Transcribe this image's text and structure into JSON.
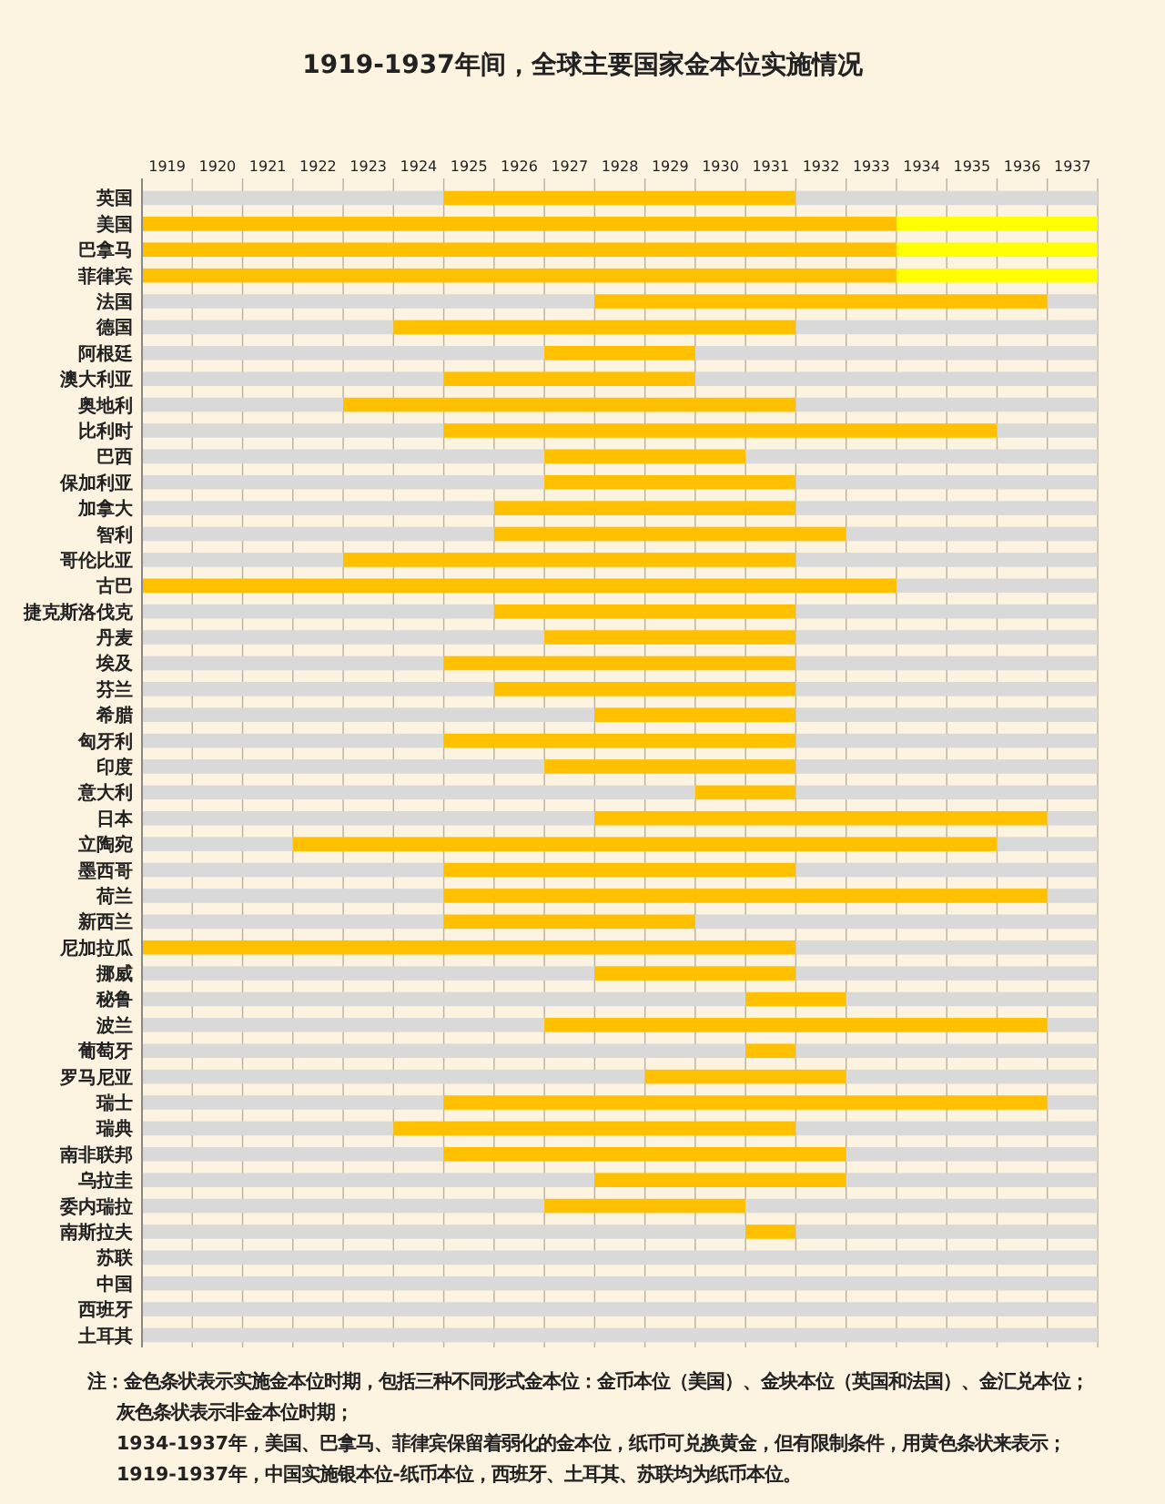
{
  "chart_data": {
    "type": "bar",
    "orientation": "horizontal",
    "title": "1919-1937年间，全球主要国家金本位实施情况",
    "categories": [
      "英国",
      "美国",
      "巴拿马",
      "菲律宾",
      "法国",
      "德国",
      "阿根廷",
      "澳大利亚",
      "奥地利",
      "比利时",
      "巴西",
      "保加利亚",
      "加拿大",
      "智利",
      "哥伦比亚",
      "古巴",
      "捷克斯洛伐克",
      "丹麦",
      "埃及",
      "芬兰",
      "希腊",
      "匈牙利",
      "印度",
      "意大利",
      "日本",
      "立陶宛",
      "墨西哥",
      "荷兰",
      "新西兰",
      "尼加拉瓜",
      "挪威",
      "秘鲁",
      "波兰",
      "葡萄牙",
      "罗马尼亚",
      "瑞士",
      "瑞典",
      "南非联邦",
      "乌拉圭",
      "委内瑞拉",
      "南斯拉夫",
      "苏联",
      "中国",
      "西班牙",
      "土耳其"
    ],
    "series": [
      {
        "color": "#d9d9d9",
        "base": [
          1919,
          null,
          null,
          null,
          1919,
          1919,
          1919,
          1919,
          1919,
          1919,
          1919,
          1919,
          1919,
          1919,
          1919,
          null,
          1919,
          1919,
          1919,
          1919,
          1919,
          1919,
          1919,
          1919,
          1919,
          1919,
          1919,
          1919,
          1919,
          null,
          1919,
          1919,
          1919,
          1919,
          1919,
          1919,
          1919,
          1919,
          1919,
          1919,
          1919,
          1919,
          1919,
          1919,
          1919
        ],
        "values": [
          6,
          null,
          null,
          null,
          9,
          5,
          8,
          6,
          4,
          6,
          8,
          8,
          7,
          7,
          4,
          null,
          7,
          8,
          6,
          7,
          9,
          6,
          8,
          11,
          9,
          3,
          6,
          6,
          6,
          null,
          9,
          12,
          8,
          12,
          10,
          6,
          5,
          6,
          9,
          8,
          12,
          19,
          19,
          19,
          19
        ]
      },
      {
        "color": "#ffc000",
        "base": [
          1925,
          1919,
          1919,
          1919,
          1928,
          1924,
          1927,
          1925,
          1923,
          1925,
          1927,
          1927,
          1926,
          1926,
          1923,
          1919,
          1926,
          1927,
          1925,
          1926,
          1928,
          1925,
          1927,
          1930,
          1928,
          1922,
          1925,
          1925,
          1925,
          1919,
          1928,
          1931,
          1927,
          1931,
          1929,
          1925,
          1924,
          1925,
          1928,
          1927,
          1931,
          null,
          null,
          null,
          null
        ],
        "values": [
          7,
          15,
          15,
          15,
          9,
          8,
          3,
          5,
          9,
          11,
          4,
          5,
          6,
          7,
          9,
          15,
          6,
          5,
          7,
          6,
          4,
          7,
          5,
          2,
          9,
          14,
          7,
          12,
          5,
          13,
          4,
          2,
          10,
          1,
          4,
          12,
          8,
          8,
          5,
          4,
          1,
          null,
          null,
          null,
          null
        ]
      },
      {
        "color": "#ffff00",
        "base": [
          null,
          1934,
          1934,
          1934,
          null,
          null,
          null,
          null,
          null,
          null,
          null,
          null,
          null,
          null,
          null,
          null,
          null,
          null,
          null,
          null,
          null,
          null,
          null,
          null,
          null,
          null,
          null,
          null,
          null,
          null,
          null,
          null,
          null,
          null,
          null,
          null,
          null,
          null,
          null,
          null,
          null,
          null,
          null,
          null,
          null
        ],
        "values": [
          null,
          4,
          4,
          4,
          null,
          null,
          null,
          null,
          null,
          null,
          null,
          null,
          null,
          null,
          null,
          null,
          null,
          null,
          null,
          null,
          null,
          null,
          null,
          null,
          null,
          null,
          null,
          null,
          null,
          null,
          null,
          null,
          null,
          null,
          null,
          null,
          null,
          null,
          null,
          null,
          null,
          null,
          null,
          null,
          null
        ]
      },
      {
        "color": "#d9d9d9",
        "base": [
          1932,
          null,
          null,
          null,
          1937,
          1932,
          1930,
          1930,
          1932,
          1936,
          1931,
          1932,
          1932,
          1933,
          1932,
          1934,
          1932,
          1932,
          1932,
          1932,
          1932,
          1932,
          1932,
          1932,
          1937,
          1936,
          1932,
          1937,
          1930,
          1932,
          1932,
          1933,
          1937,
          1932,
          1933,
          1937,
          1932,
          1933,
          1933,
          1931,
          1932,
          null,
          null,
          null,
          null
        ],
        "values": [
          6,
          null,
          null,
          null,
          1,
          6,
          8,
          8,
          6,
          2,
          7,
          6,
          6,
          5,
          6,
          4,
          6,
          6,
          6,
          6,
          6,
          6,
          6,
          6,
          1,
          2,
          6,
          1,
          8,
          6,
          6,
          5,
          1,
          6,
          5,
          1,
          6,
          5,
          5,
          7,
          6,
          null,
          null,
          null,
          null
        ]
      }
    ],
    "xlim": [
      1919,
      1938
    ],
    "xticks": [
      {
        "value": 1919.5,
        "label": "1919"
      },
      {
        "value": 1920.5,
        "label": "1920"
      },
      {
        "value": 1921.5,
        "label": "1921"
      },
      {
        "value": 1922.5,
        "label": "1922"
      },
      {
        "value": 1923.5,
        "label": "1923"
      },
      {
        "value": 1924.5,
        "label": "1924"
      },
      {
        "value": 1925.5,
        "label": "1925"
      },
      {
        "value": 1926.5,
        "label": "1926"
      },
      {
        "value": 1927.5,
        "label": "1927"
      },
      {
        "value": 1928.5,
        "label": "1928"
      },
      {
        "value": 1929.5,
        "label": "1929"
      },
      {
        "value": 1930.5,
        "label": "1930"
      },
      {
        "value": 1931.5,
        "label": "1931"
      },
      {
        "value": 1932.5,
        "label": "1932"
      },
      {
        "value": 1933.5,
        "label": "1933"
      },
      {
        "value": 1934.5,
        "label": "1934"
      },
      {
        "value": 1935.5,
        "label": "1935"
      },
      {
        "value": 1936.5,
        "label": "1936"
      },
      {
        "value": 1937.5,
        "label": "1937"
      }
    ],
    "grid": "x",
    "annotations": [
      "注：金色条状表示实施金本位时期，包括三种不同形式金本位：金币本位（美国）、金块本位（英国和法国）、金汇兑本位；",
      "灰色条状表示非金本位时期；",
      "1934-1937年，美国、巴拿马、菲律宾保留着弱化的金本位，纸币可兑换黄金，但有限制条件，用黄色条状来表示；",
      "1919-1937年，中国实施银本位-纸币本位，西班牙、土耳其、苏联均为纸币本位。"
    ]
  }
}
